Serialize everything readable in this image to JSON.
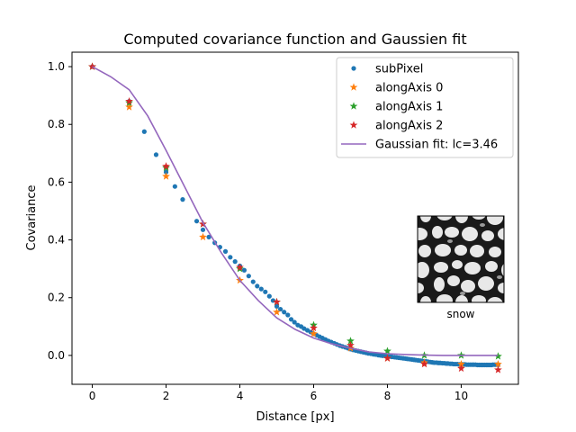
{
  "chart_data": {
    "type": "scatter",
    "title": "Computed covariance function and Gaussien fit",
    "xlabel": "Distance [px]",
    "ylabel": "Covariance",
    "xlim": [
      -0.55,
      11.55
    ],
    "ylim": [
      -0.1,
      1.05
    ],
    "xticks": [
      0,
      2,
      4,
      6,
      8,
      10
    ],
    "yticks": [
      0.0,
      0.2,
      0.4,
      0.6,
      0.8,
      1.0
    ],
    "ytick_labels": [
      "0.0",
      "0.2",
      "0.4",
      "0.6",
      "0.8",
      "1.0"
    ],
    "legend_position": "top-right",
    "grid": false,
    "series": [
      {
        "name": "subPixel",
        "marker": "dot",
        "color": "#1f77b4",
        "x": [
          0,
          1.0,
          1.41,
          1.73,
          2.0,
          2.24,
          2.45,
          2.83,
          3.0,
          3.16,
          3.32,
          3.46,
          3.61,
          3.74,
          3.87,
          4.0,
          4.12,
          4.24,
          4.36,
          4.47,
          4.58,
          4.69,
          4.8,
          4.9,
          5.0,
          5.1,
          5.2,
          5.3,
          5.39,
          5.48,
          5.57,
          5.66,
          5.74,
          5.83,
          5.92,
          6.0,
          6.08,
          6.16,
          6.24,
          6.32,
          6.4,
          6.48,
          6.56,
          6.63,
          6.71,
          6.78,
          6.86,
          6.93,
          7.0,
          7.07,
          7.14,
          7.21,
          7.28,
          7.35,
          7.42,
          7.48,
          7.55,
          7.62,
          7.68,
          7.75,
          7.81,
          7.87,
          7.94,
          8.0,
          8.06,
          8.12,
          8.19,
          8.25,
          8.31,
          8.37,
          8.43,
          8.49,
          8.54,
          8.6,
          8.66,
          8.72,
          8.77,
          8.83,
          8.89,
          8.94,
          9.0,
          9.06,
          9.11,
          9.17,
          9.22,
          9.27,
          9.33,
          9.38,
          9.43,
          9.49,
          9.54,
          9.59,
          9.64,
          9.7,
          9.75,
          9.8,
          9.85,
          9.9,
          9.95,
          10.0,
          10.05,
          10.1,
          10.15,
          10.2,
          10.25,
          10.3,
          10.34,
          10.39,
          10.44,
          10.49,
          10.54,
          10.58,
          10.63,
          10.68,
          10.72,
          10.77,
          10.82,
          10.86,
          10.91,
          10.95,
          11.0
        ],
        "y": [
          1.0,
          0.88,
          0.775,
          0.695,
          0.635,
          0.585,
          0.54,
          0.465,
          0.435,
          0.41,
          0.39,
          0.375,
          0.36,
          0.34,
          0.325,
          0.31,
          0.295,
          0.275,
          0.255,
          0.24,
          0.23,
          0.22,
          0.205,
          0.19,
          0.17,
          0.16,
          0.15,
          0.14,
          0.125,
          0.115,
          0.105,
          0.1,
          0.093,
          0.087,
          0.081,
          0.075,
          0.07,
          0.065,
          0.06,
          0.055,
          0.05,
          0.046,
          0.042,
          0.038,
          0.034,
          0.031,
          0.028,
          0.025,
          0.022,
          0.019,
          0.017,
          0.015,
          0.013,
          0.011,
          0.009,
          0.007,
          0.006,
          0.004,
          0.003,
          0.001,
          0.0,
          -0.001,
          -0.002,
          -0.003,
          -0.004,
          -0.005,
          -0.006,
          -0.007,
          -0.008,
          -0.009,
          -0.01,
          -0.011,
          -0.012,
          -0.013,
          -0.014,
          -0.015,
          -0.016,
          -0.017,
          -0.018,
          -0.019,
          -0.02,
          -0.021,
          -0.022,
          -0.023,
          -0.024,
          -0.025,
          -0.025,
          -0.026,
          -0.026,
          -0.027,
          -0.027,
          -0.028,
          -0.028,
          -0.029,
          -0.029,
          -0.03,
          -0.03,
          -0.03,
          -0.031,
          -0.031,
          -0.031,
          -0.031,
          -0.032,
          -0.032,
          -0.032,
          -0.032,
          -0.032,
          -0.032,
          -0.033,
          -0.033,
          -0.033,
          -0.033,
          -0.033,
          -0.033,
          -0.033,
          -0.033,
          -0.033,
          -0.032,
          -0.032,
          -0.032,
          -0.032
        ]
      },
      {
        "name": "alongAxis 0",
        "marker": "star",
        "color": "#ff7f0e",
        "x": [
          0,
          1,
          2,
          3,
          4,
          5,
          6,
          7,
          8,
          9,
          10,
          11
        ],
        "y": [
          1.0,
          0.86,
          0.62,
          0.41,
          0.26,
          0.15,
          0.075,
          0.025,
          -0.01,
          -0.025,
          -0.03,
          -0.03
        ]
      },
      {
        "name": "alongAxis 1",
        "marker": "star",
        "color": "#2ca02c",
        "x": [
          0,
          1,
          2,
          3,
          4,
          5,
          6,
          7,
          8,
          9,
          10,
          11
        ],
        "y": [
          1.0,
          0.875,
          0.65,
          0.455,
          0.3,
          0.185,
          0.105,
          0.05,
          0.015,
          0.0,
          0.0,
          -0.003
        ]
      },
      {
        "name": "alongAxis 2",
        "marker": "star",
        "color": "#d62728",
        "x": [
          0,
          1,
          2,
          3,
          4,
          5,
          6,
          7,
          8,
          9,
          10,
          11
        ],
        "y": [
          1.0,
          0.88,
          0.655,
          0.455,
          0.305,
          0.185,
          0.095,
          0.035,
          -0.01,
          -0.03,
          -0.045,
          -0.05
        ]
      },
      {
        "name": "Gaussian fit: lc=3.46",
        "marker": "line",
        "color": "#9467bd",
        "x": [
          0,
          0.5,
          1.0,
          1.5,
          2.0,
          2.5,
          3.0,
          3.5,
          4.0,
          4.5,
          5.0,
          5.5,
          6.0,
          6.5,
          7.0,
          7.5,
          8.0,
          8.5,
          9.0,
          9.5,
          10.0,
          10.5,
          11.0
        ],
        "y": [
          1.0,
          0.965,
          0.92,
          0.83,
          0.71,
          0.585,
          0.46,
          0.355,
          0.26,
          0.19,
          0.13,
          0.09,
          0.06,
          0.04,
          0.025,
          0.012,
          0.006,
          0.003,
          0.001,
          0.0,
          0.0,
          0.0,
          0.0
        ]
      }
    ],
    "inset": {
      "label": "snow",
      "type": "image",
      "description_icon": "snow-microstructure-image"
    }
  }
}
